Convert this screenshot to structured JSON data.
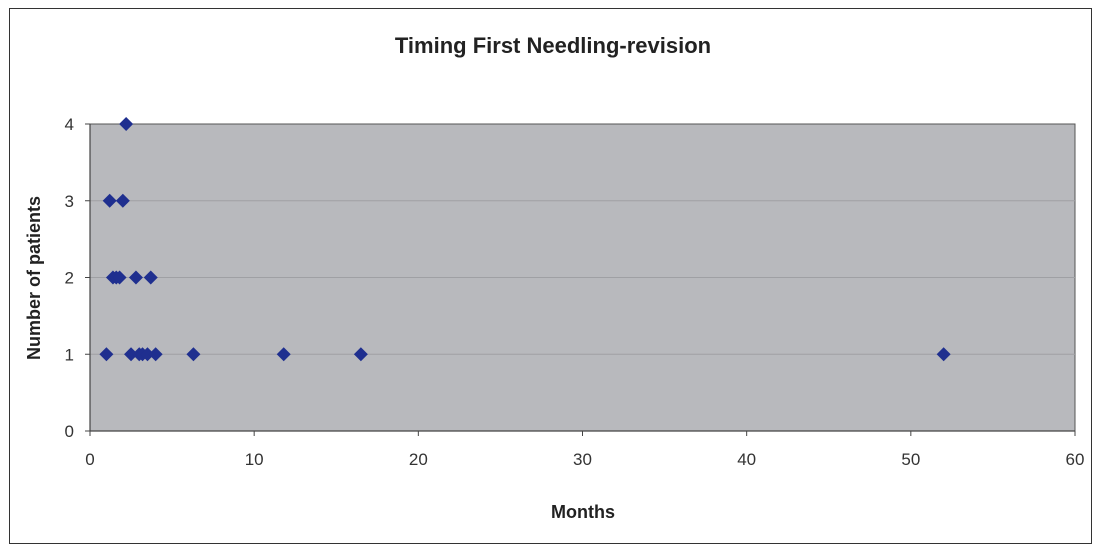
{
  "chart_data": {
    "type": "scatter",
    "title": "Timing First Needling-revision",
    "xlabel": "Months",
    "ylabel": "Number of patients",
    "xlim": [
      0,
      60
    ],
    "ylim": [
      0,
      4
    ],
    "x_ticks": [
      0,
      10,
      20,
      30,
      40,
      50,
      60
    ],
    "y_ticks": [
      0,
      1,
      2,
      3,
      4
    ],
    "grid": true,
    "colors": {
      "plot_bg": "#b8b9bd",
      "marker": "#1f2f8f",
      "grid": "#9fa0a4"
    },
    "points": [
      {
        "x": 2.2,
        "y": 4
      },
      {
        "x": 1.2,
        "y": 3
      },
      {
        "x": 2.0,
        "y": 3
      },
      {
        "x": 1.4,
        "y": 2
      },
      {
        "x": 1.6,
        "y": 2
      },
      {
        "x": 1.8,
        "y": 2
      },
      {
        "x": 2.8,
        "y": 2
      },
      {
        "x": 3.7,
        "y": 2
      },
      {
        "x": 1.0,
        "y": 1
      },
      {
        "x": 2.5,
        "y": 1
      },
      {
        "x": 3.0,
        "y": 1
      },
      {
        "x": 3.2,
        "y": 1
      },
      {
        "x": 3.5,
        "y": 1
      },
      {
        "x": 4.0,
        "y": 1
      },
      {
        "x": 6.3,
        "y": 1
      },
      {
        "x": 11.8,
        "y": 1
      },
      {
        "x": 16.5,
        "y": 1
      },
      {
        "x": 52.0,
        "y": 1
      }
    ]
  }
}
